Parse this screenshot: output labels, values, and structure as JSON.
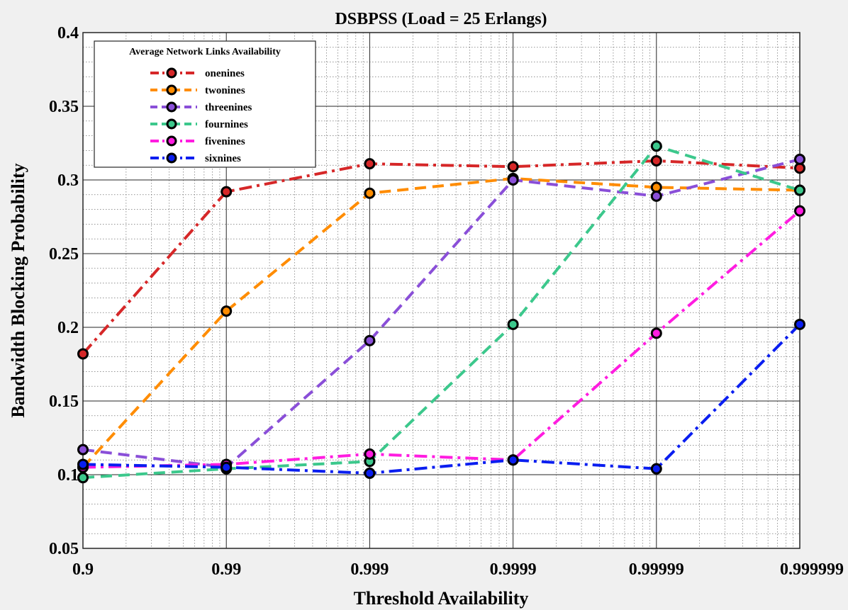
{
  "chart_data": {
    "type": "line",
    "title": "DSBPSS (Load  = 25 Erlangs)",
    "xlabel": "Threshold Availability",
    "ylabel": "Bandwidth Blocking Probability",
    "x_scale": "log-nines",
    "categories": [
      "0.9",
      "0.99",
      "0.999",
      "0.9999",
      "0.99999",
      "0.999999"
    ],
    "ylim": [
      0.05,
      0.4
    ],
    "yticks": [
      "0.05",
      "0.1",
      "0.15",
      "0.2",
      "0.25",
      "0.3",
      "0.35",
      "0.4"
    ],
    "ytick_values": [
      0.05,
      0.1,
      0.15,
      0.2,
      0.25,
      0.3,
      0.35,
      0.4
    ],
    "grid": true,
    "minor_grid": true,
    "legend_title": "Average Network Links Availability",
    "legend_position": "top-left",
    "series": [
      {
        "name": "onenines",
        "color": "#d62728",
        "dash": "dashdot",
        "values": [
          0.182,
          0.292,
          0.311,
          0.309,
          0.313,
          0.308
        ]
      },
      {
        "name": "twonines",
        "color": "#ff8c00",
        "dash": "dash",
        "values": [
          0.105,
          0.211,
          0.291,
          0.301,
          0.295,
          0.293
        ]
      },
      {
        "name": "threenines",
        "color": "#8a4fd8",
        "dash": "dash",
        "values": [
          0.117,
          0.105,
          0.191,
          0.3,
          0.289,
          0.314
        ]
      },
      {
        "name": "fournines",
        "color": "#3cc88c",
        "dash": "dash",
        "values": [
          0.098,
          0.104,
          0.109,
          0.202,
          0.323,
          0.293
        ]
      },
      {
        "name": "fivenines",
        "color": "#ff1ce0",
        "dash": "dashdot",
        "values": [
          0.105,
          0.107,
          0.114,
          0.11,
          0.196,
          0.279
        ]
      },
      {
        "name": "sixnines",
        "color": "#0a1ef0",
        "dash": "dashdot",
        "values": [
          0.107,
          0.105,
          0.101,
          0.11,
          0.104,
          0.202
        ]
      }
    ]
  }
}
